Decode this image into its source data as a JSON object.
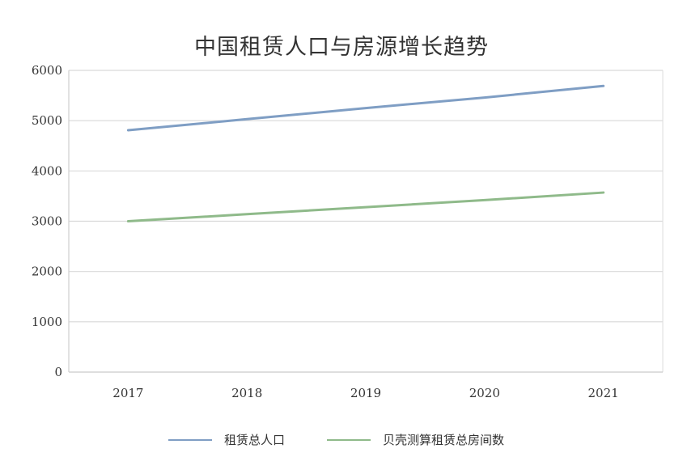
{
  "chart_data": {
    "type": "line",
    "title": "中国租赁人口与房源增长趋势",
    "categories": [
      "2017",
      "2018",
      "2019",
      "2020",
      "2021"
    ],
    "series": [
      {
        "name": "租赁总人口",
        "color": "#7f9ec4",
        "values": [
          4810,
          5030,
          5250,
          5460,
          5690
        ]
      },
      {
        "name": "贝壳测算租赁总房间数",
        "color": "#8fba8a",
        "values": [
          3000,
          3140,
          3280,
          3420,
          3570
        ]
      }
    ],
    "ylim": [
      0,
      6000
    ],
    "yticks": [
      0,
      1000,
      2000,
      3000,
      4000,
      5000,
      6000
    ],
    "grid": true,
    "legend": "bottom"
  }
}
